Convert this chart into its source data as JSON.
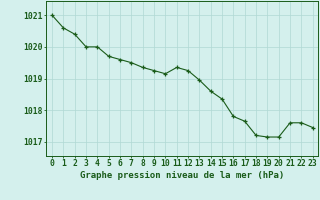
{
  "x": [
    0,
    1,
    2,
    3,
    4,
    5,
    6,
    7,
    8,
    9,
    10,
    11,
    12,
    13,
    14,
    15,
    16,
    17,
    18,
    19,
    20,
    21,
    22,
    23
  ],
  "y": [
    1021.0,
    1020.6,
    1020.4,
    1020.0,
    1020.0,
    1019.7,
    1019.6,
    1019.5,
    1019.35,
    1019.25,
    1019.15,
    1019.35,
    1019.25,
    1018.95,
    1018.6,
    1018.35,
    1017.8,
    1017.65,
    1017.2,
    1017.15,
    1017.15,
    1017.6,
    1017.6,
    1017.45
  ],
  "line_color": "#1a5c1a",
  "marker_color": "#1a5c1a",
  "bg_color": "#d4f0ed",
  "grid_color": "#b0d8d4",
  "ylabel_ticks": [
    1017,
    1018,
    1019,
    1020,
    1021
  ],
  "xlabel_label": "Graphe pression niveau de la mer (hPa)",
  "xlim": [
    -0.5,
    23.5
  ],
  "ylim": [
    1016.55,
    1021.45
  ],
  "label_fontsize": 6.5,
  "tick_fontsize": 5.8
}
